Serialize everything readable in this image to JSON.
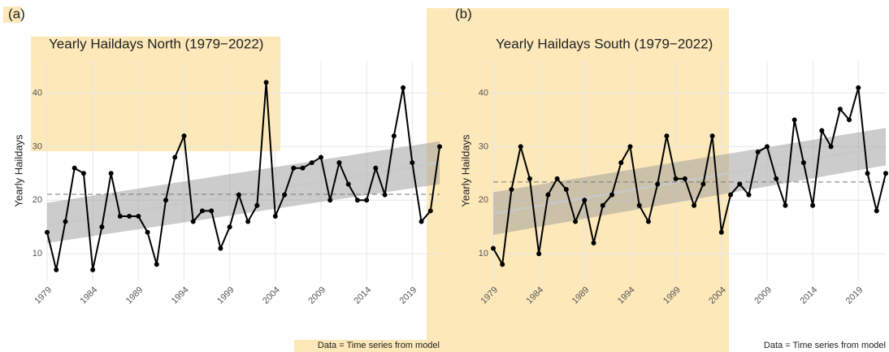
{
  "chart_data": [
    {
      "type": "line",
      "panel_label": "(a)",
      "title": "Yearly Haildays North (1979−2022)",
      "ylabel": "Yearly Haildays",
      "caption": "Data = Time series from model",
      "x": [
        1979,
        1980,
        1981,
        1982,
        1983,
        1984,
        1985,
        1986,
        1987,
        1988,
        1989,
        1990,
        1991,
        1992,
        1993,
        1994,
        1995,
        1996,
        1997,
        1998,
        1999,
        2000,
        2001,
        2002,
        2003,
        2004,
        2005,
        2006,
        2007,
        2008,
        2009,
        2010,
        2011,
        2012,
        2013,
        2014,
        2015,
        2016,
        2017,
        2018,
        2019,
        2020,
        2021,
        2022
      ],
      "values": [
        14,
        7,
        16,
        26,
        25,
        7,
        15,
        25,
        17,
        17,
        17,
        14,
        8,
        20,
        28,
        32,
        16,
        18,
        18,
        11,
        15,
        21,
        16,
        19,
        42,
        17,
        21,
        26,
        26,
        27,
        28,
        20,
        27,
        23,
        20,
        20,
        26,
        21,
        32,
        41,
        27,
        16,
        18,
        30
      ],
      "color": "#000000",
      "trend": [
        15.3,
        27.0
      ],
      "trend_lower": [
        12.0,
        23.0
      ],
      "trend_upper": [
        19.5,
        31.0
      ],
      "mean": 21.1,
      "xlim": [
        1979,
        2022
      ],
      "xticks": [
        1979,
        1984,
        1989,
        1994,
        1999,
        2004,
        2009,
        2014,
        2019
      ],
      "ylim": [
        5,
        46
      ],
      "yticks": [
        10,
        20,
        30,
        40
      ],
      "grid": true
    },
    {
      "type": "line",
      "panel_label": "(b)",
      "title": "Yearly Haildays South (1979−2022)",
      "ylabel": "Yearly Haildays",
      "caption": "Data = Time series from model",
      "x": [
        1979,
        1980,
        1981,
        1982,
        1983,
        1984,
        1985,
        1986,
        1987,
        1988,
        1989,
        1990,
        1991,
        1992,
        1993,
        1994,
        1995,
        1996,
        1997,
        1998,
        1999,
        2000,
        2001,
        2002,
        2003,
        2004,
        2005,
        2006,
        2007,
        2008,
        2009,
        2010,
        2011,
        2012,
        2013,
        2014,
        2015,
        2016,
        2017,
        2018,
        2019,
        2020,
        2021,
        2022
      ],
      "values": [
        11,
        8,
        22,
        30,
        24,
        10,
        21,
        24,
        22,
        16,
        20,
        12,
        19,
        21,
        27,
        30,
        19,
        16,
        23,
        32,
        24,
        24,
        19,
        23,
        32,
        14,
        21,
        23,
        21,
        29,
        30,
        24,
        19,
        35,
        27,
        19,
        33,
        30,
        37,
        35,
        41,
        25,
        18,
        25
      ],
      "color": "#000000",
      "trend": [
        17.5,
        30.0
      ],
      "trend_lower": [
        13.5,
        26.5
      ],
      "trend_upper": [
        21.5,
        33.5
      ],
      "mean": 23.4,
      "xlim": [
        1979,
        2022
      ],
      "xticks": [
        1979,
        1984,
        1989,
        1994,
        1999,
        2004,
        2009,
        2014,
        2019
      ],
      "ylim": [
        5,
        46
      ],
      "yticks": [
        10,
        20,
        30,
        40
      ],
      "grid": true
    }
  ]
}
